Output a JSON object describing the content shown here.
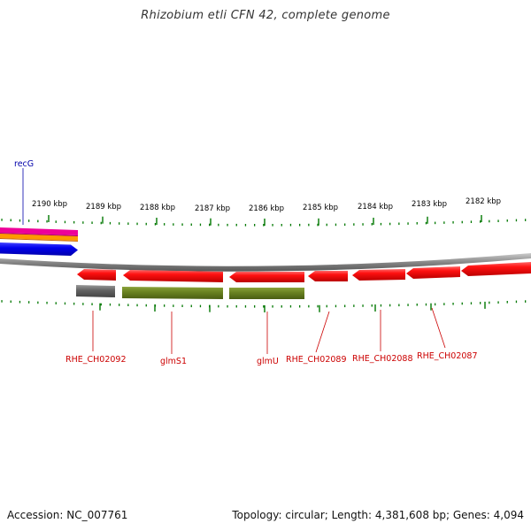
{
  "title": "Rhizobium etli CFN 42, complete genome",
  "footer": {
    "accession": "Accession: NC_007761",
    "summary": "Topology: circular; Length: 4,381,608 bp; Genes: 4,094"
  },
  "ticks": [
    {
      "label": "2190 kbp"
    },
    {
      "label": "2189 kbp"
    },
    {
      "label": "2188 kbp"
    },
    {
      "label": "2187 kbp"
    },
    {
      "label": "2186 kbp"
    },
    {
      "label": "2185 kbp"
    },
    {
      "label": "2184 kbp"
    },
    {
      "label": "2183 kbp"
    },
    {
      "label": "2182 kbp"
    }
  ],
  "genes": [
    {
      "name": "recG",
      "color": "#0000aa"
    },
    {
      "name": "RHE_CH02092",
      "color": "#cc0000"
    },
    {
      "name": "glmS1",
      "color": "#cc0000"
    },
    {
      "name": "glmU",
      "color": "#cc0000"
    },
    {
      "name": "RHE_CH02089",
      "color": "#cc0000"
    },
    {
      "name": "RHE_CH02088",
      "color": "#cc0000"
    },
    {
      "name": "RHE_CH02087",
      "color": "#cc0000"
    }
  ],
  "colors": {
    "cds": "#ee0000",
    "gene": "#667a1e",
    "gene_gray": "#666666",
    "blue": "#0000ee",
    "orange": "#ff9900",
    "magenta": "#ee0099",
    "backbone": "#888888",
    "tick": "#007700"
  }
}
